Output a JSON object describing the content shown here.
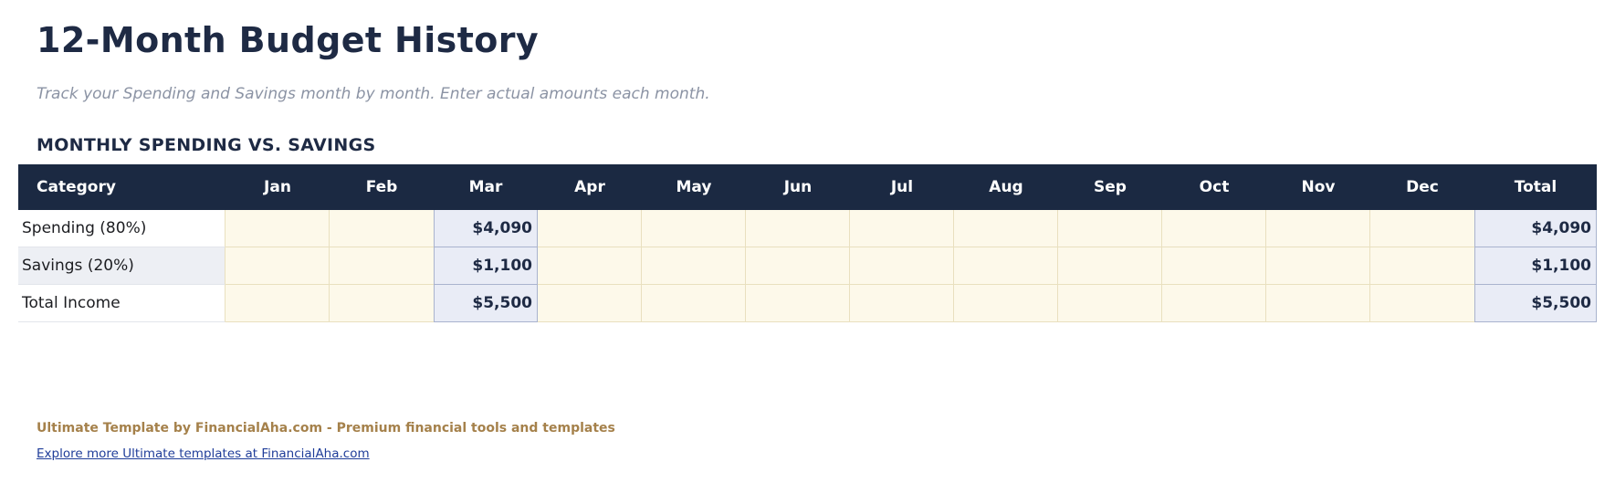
{
  "page": {
    "title": "12-Month Budget History",
    "subtitle": "Track your Spending and Savings month by month. Enter actual amounts each month."
  },
  "section": {
    "heading": "MONTHLY SPENDING VS. SAVINGS"
  },
  "table": {
    "columns": [
      "Category",
      "Jan",
      "Feb",
      "Mar",
      "Apr",
      "May",
      "Jun",
      "Jul",
      "Aug",
      "Sep",
      "Oct",
      "Nov",
      "Dec",
      "Total"
    ],
    "rows": [
      {
        "category": "Spending (80%)",
        "mar": "$4,090",
        "total": "$4,090"
      },
      {
        "category": "Savings (20%)",
        "mar": "$1,100",
        "total": "$1,100"
      },
      {
        "category": "Total Income",
        "mar": "$5,500",
        "total": "$5,500"
      }
    ]
  },
  "footer": {
    "credit": "Ultimate Template by FinancialAha.com - Premium financial tools and templates",
    "link_label": "Explore more Ultimate templates at FinancialAha.com"
  },
  "colors": {
    "header_navy": "#1b2942",
    "entry_cream": "#fdf9ea",
    "highlight_blue": "#e9ecf6",
    "credit_gold": "#a5814b",
    "link_blue": "#1f3d99"
  }
}
